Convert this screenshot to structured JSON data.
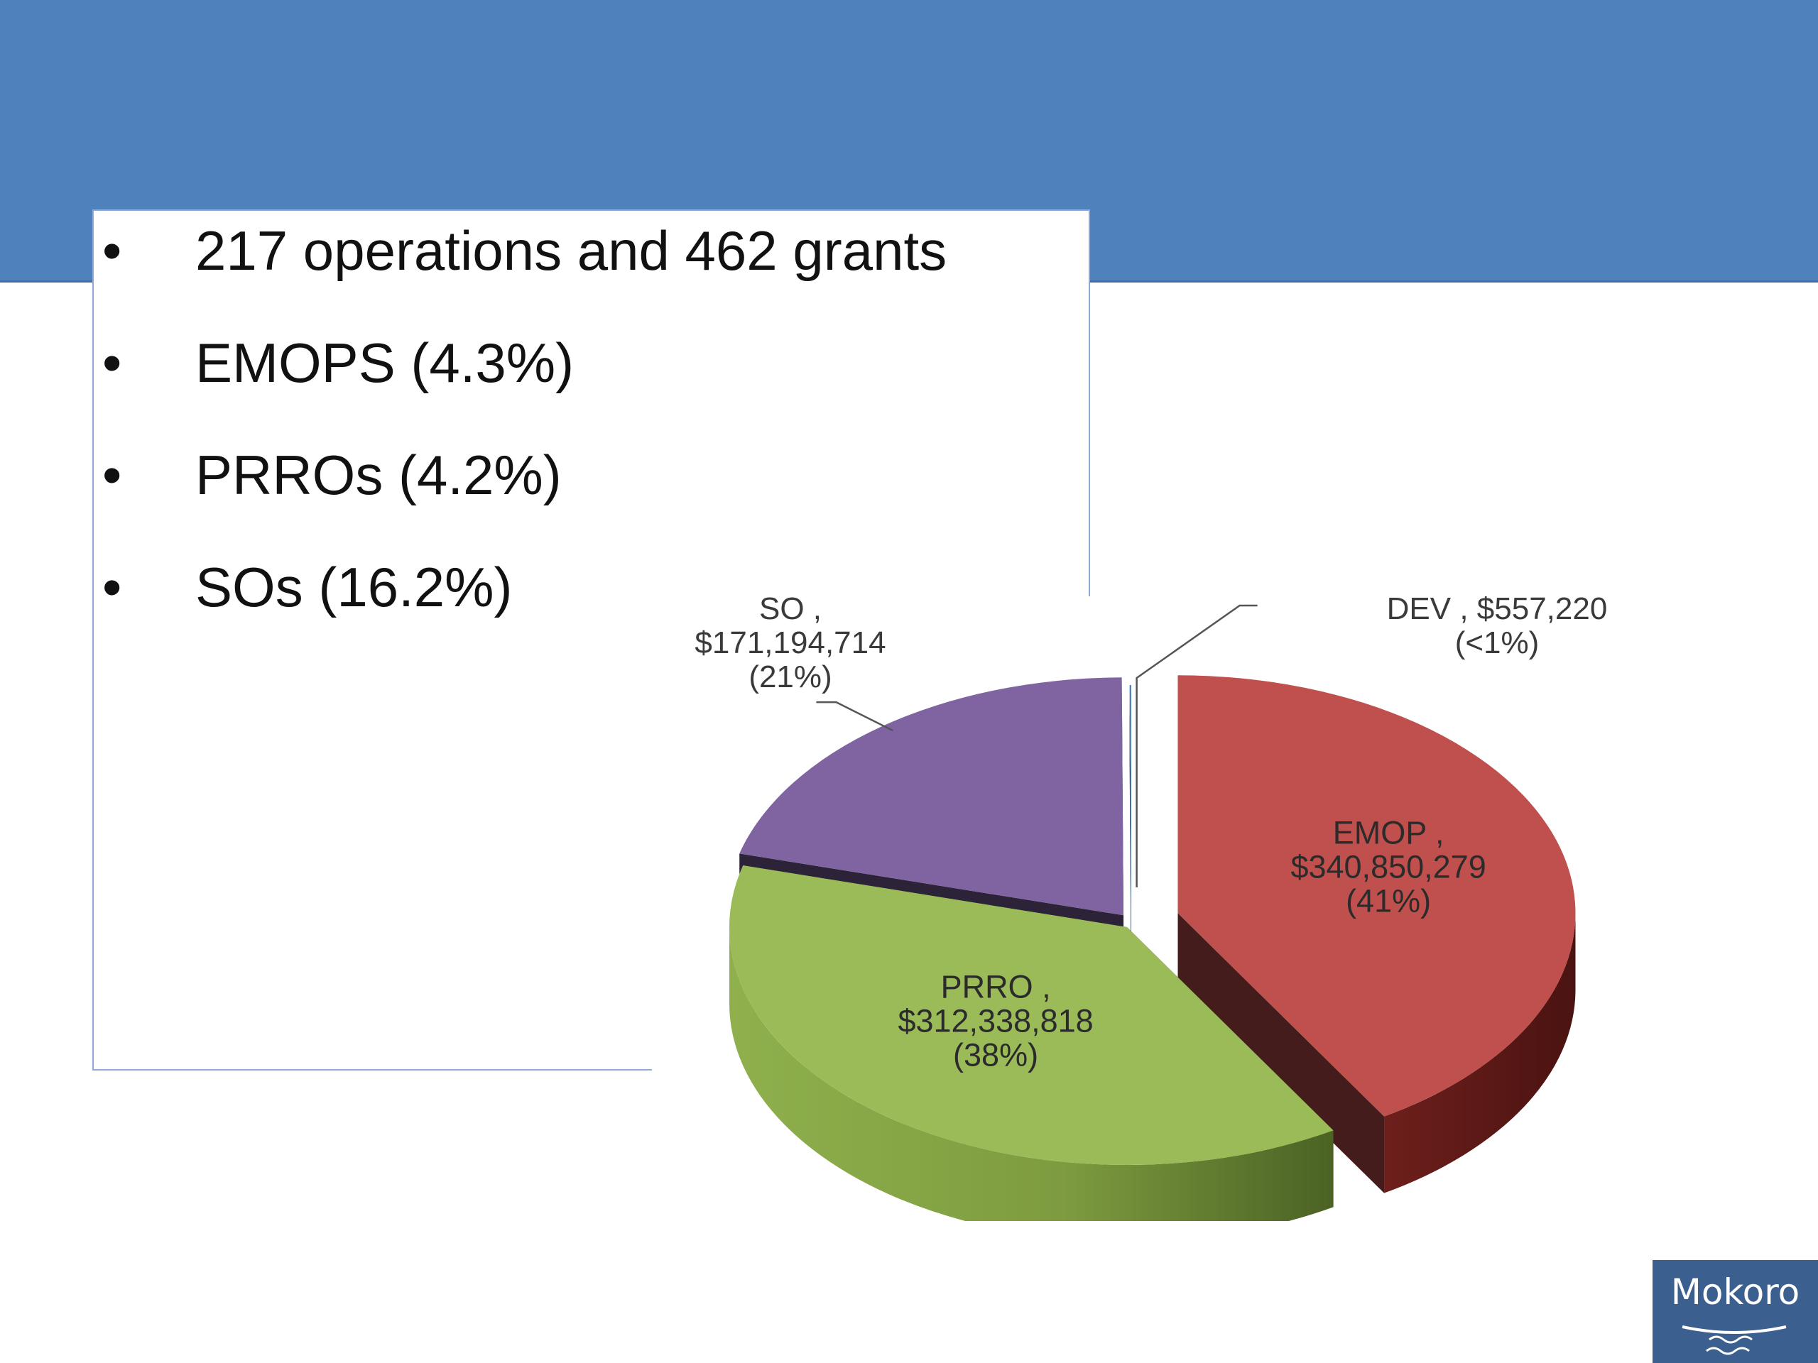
{
  "slide": {
    "bullets": [
      {
        "marker": "•",
        "text": "217 operations and 462 grants"
      },
      {
        "marker": "•",
        "text": "EMOPS (4.3%)"
      },
      {
        "marker": "•",
        "text": "PRROs (4.2%)"
      },
      {
        "marker": "•",
        "text": "SOs (16.2%)"
      }
    ],
    "logo_text": "Mokoro",
    "colors": {
      "band": "#4f81bd",
      "logo": "#3b5f8f"
    }
  },
  "chart_data": {
    "type": "pie",
    "style": "3d-exploded",
    "slices": [
      {
        "category": "EMOP",
        "value": 340850279,
        "label_lines": [
          "EMOP ,",
          "$340,850,279",
          "(41%)"
        ],
        "color": "#c0504d"
      },
      {
        "category": "PRRO",
        "value": 312338818,
        "label_lines": [
          "PRRO ,",
          "$312,338,818",
          "(38%)"
        ],
        "color": "#9bbb59"
      },
      {
        "category": "SO",
        "value": 171194714,
        "label_lines": [
          "SO ,",
          "$171,194,714",
          "(21%)"
        ],
        "color": "#8064a2"
      },
      {
        "category": "DEV",
        "value": 557220,
        "label_lines": [
          "DEV ,  $557,220",
          "(<1%)"
        ],
        "color": "#4f81bd"
      }
    ]
  }
}
